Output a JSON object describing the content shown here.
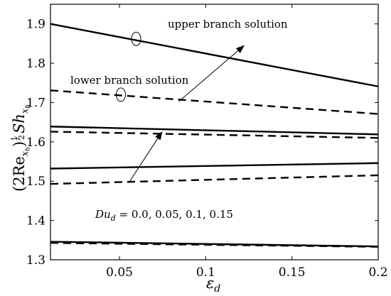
{
  "chart_data": {
    "type": "line",
    "title": "",
    "xlabel": "ε",
    "xlabel_sub": "d",
    "ylabel_parts": {
      "open": "(2Re",
      "sub1": "x",
      "sub2": "h",
      "close": ")",
      "exp_num": "1",
      "exp_den": "2",
      "sh": "Sh",
      "sub3": "x",
      "sub4": "h"
    },
    "xlim": [
      0.01,
      0.2
    ],
    "ylim": [
      1.3,
      1.95
    ],
    "xticks": [
      0.05,
      0.1,
      0.15,
      0.2
    ],
    "xtick_labels": [
      "0.05",
      "0.1",
      "0.15",
      "0.2"
    ],
    "yticks": [
      1.3,
      1.4,
      1.5,
      1.6,
      1.7,
      1.8,
      1.9
    ],
    "ytick_labels": [
      "1.3",
      "1.4",
      "1.5",
      "1.6",
      "1.7",
      "1.8",
      "1.9"
    ],
    "grid": false,
    "series": [
      {
        "branch": "upper",
        "style": "solid",
        "x": [
          0.01,
          0.2
        ],
        "y": [
          1.9,
          1.741
        ]
      },
      {
        "branch": "upper",
        "style": "solid",
        "x": [
          0.01,
          0.2
        ],
        "y": [
          1.639,
          1.619
        ]
      },
      {
        "branch": "upper",
        "style": "solid",
        "x": [
          0.01,
          0.2
        ],
        "y": [
          1.532,
          1.546
        ]
      },
      {
        "branch": "upper",
        "style": "solid",
        "x": [
          0.01,
          0.2
        ],
        "y": [
          1.346,
          1.334
        ]
      },
      {
        "branch": "lower",
        "style": "dashed",
        "x": [
          0.01,
          0.2
        ],
        "y": [
          1.731,
          1.671
        ]
      },
      {
        "branch": "lower",
        "style": "dashed",
        "x": [
          0.01,
          0.2
        ],
        "y": [
          1.626,
          1.61
        ]
      },
      {
        "branch": "lower",
        "style": "dashed",
        "x": [
          0.01,
          0.2
        ],
        "y": [
          1.493,
          1.515
        ]
      },
      {
        "branch": "lower",
        "style": "dashed",
        "x": [
          0.01,
          0.2
        ],
        "y": [
          1.343,
          1.333
        ]
      }
    ],
    "annotations": {
      "upper_label": "upper branch solution",
      "lower_label": "lower branch solution",
      "du_label_main": "Du",
      "du_label_sub": "d",
      "du_label_values": " = 0.0, 0.05, 0.1, 0.15",
      "ellipse_upper": {
        "x": 0.0597,
        "y": 1.862
      },
      "ellipse_lower": {
        "x": 0.0508,
        "y": 1.72
      },
      "arrow_upper": {
        "from": [
          0.0845,
          1.703
        ],
        "to": [
          0.1225,
          1.846
        ]
      },
      "arrow_lower": {
        "from": [
          0.0557,
          1.498
        ],
        "to": [
          0.0749,
          1.627
        ]
      }
    },
    "colors": {
      "line": "#000000",
      "background": "#ffffff"
    }
  }
}
